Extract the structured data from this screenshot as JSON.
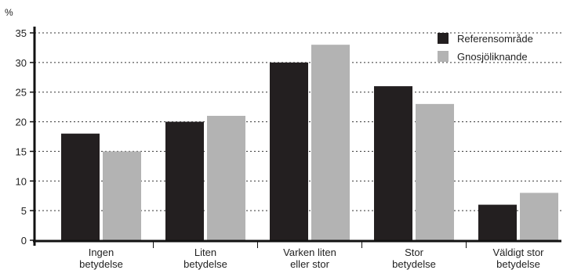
{
  "chart_data": {
    "type": "bar",
    "title": "",
    "xlabel": "",
    "ylabel": "%",
    "ylim": [
      0,
      35
    ],
    "yticks": [
      0,
      5,
      10,
      15,
      20,
      25,
      30,
      35
    ],
    "grid": true,
    "legend_position": "top-right",
    "categories": [
      [
        "Ingen",
        "betydelse"
      ],
      [
        "Liten",
        "betydelse"
      ],
      [
        "Varken liten",
        "eller stor"
      ],
      [
        "Stor",
        "betydelse"
      ],
      [
        "Väldigt stor",
        "betydelse"
      ]
    ],
    "series": [
      {
        "name": "Referensområde",
        "color": "#231f20",
        "values": [
          18,
          20,
          30,
          26,
          6
        ]
      },
      {
        "name": "Gnosjöliknande",
        "color": "#b3b3b3",
        "values": [
          15,
          21,
          33,
          23,
          8
        ]
      }
    ]
  }
}
